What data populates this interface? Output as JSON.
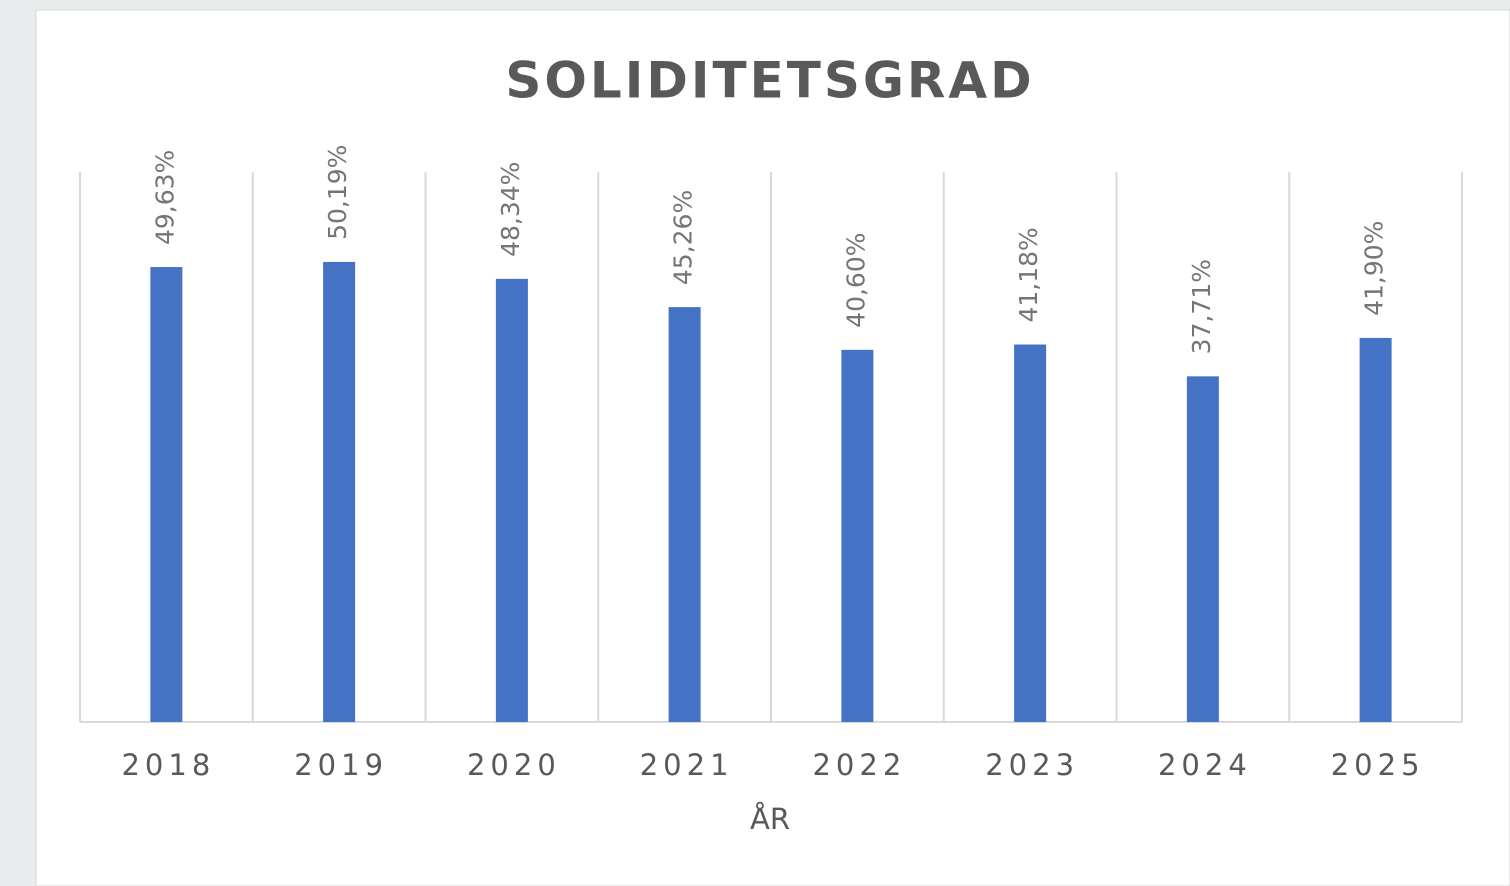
{
  "chart_data": {
    "type": "bar",
    "title": "SOLIDITETSGRAD",
    "x_label": "ÅR",
    "categories": [
      "2018",
      "2019",
      "2020",
      "2021",
      "2022",
      "2023",
      "2024",
      "2025"
    ],
    "values": [
      49.63,
      50.19,
      48.34,
      45.26,
      40.6,
      41.18,
      37.71,
      41.9
    ],
    "value_labels": [
      "49,63%",
      "50,19%",
      "48,34%",
      "45,26%",
      "40,60%",
      "41,18%",
      "37,71%",
      "41,90%"
    ],
    "color": "#4472c4",
    "ylim": [
      0,
      60
    ],
    "grid": true
  }
}
